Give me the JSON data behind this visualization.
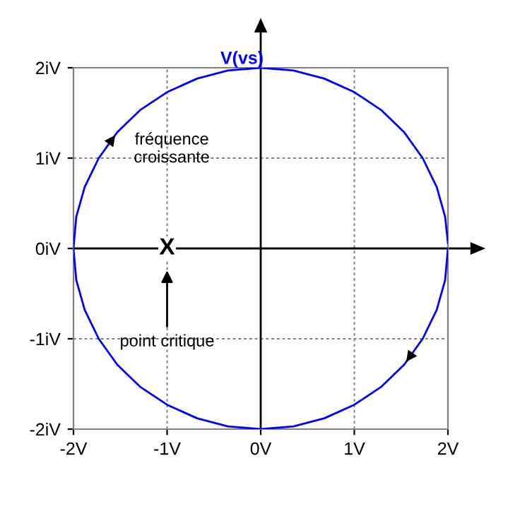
{
  "chart_data": {
    "type": "line",
    "title": "V(vs)",
    "series": [
      {
        "color": "#0000ff",
        "x": [
          2,
          1.97,
          1.88,
          1.73,
          1.53,
          1.29,
          1,
          0.68,
          0.35,
          0,
          -0.35,
          -0.68,
          -1,
          -1.29,
          -1.53,
          -1.73,
          -1.88,
          -1.97,
          -2,
          -1.97,
          -1.88,
          -1.73,
          -1.53,
          -1.29,
          -1,
          -0.68,
          -0.35,
          0,
          0.35,
          0.68,
          1,
          1.29,
          1.53,
          1.73,
          1.88,
          1.97,
          2
        ],
        "values": [
          0,
          -0.35,
          -0.68,
          -1,
          -1.29,
          -1.53,
          -1.73,
          -1.88,
          -1.97,
          -2,
          -1.97,
          -1.88,
          -1.73,
          -1.53,
          -1.29,
          -1,
          -0.68,
          -0.35,
          0,
          0.35,
          0.68,
          1,
          1.29,
          1.53,
          1.73,
          1.88,
          1.97,
          2,
          1.97,
          1.88,
          1.73,
          1.53,
          1.29,
          1,
          0.68,
          0.35,
          0.06
        ]
      }
    ],
    "xlim": [
      -2,
      2
    ],
    "ylim": [
      -2,
      2
    ],
    "xticks": [
      {
        "value": -2,
        "label": "-2V"
      },
      {
        "value": -1,
        "label": "-1V"
      },
      {
        "value": 0,
        "label": "0V"
      },
      {
        "value": 1,
        "label": "1V"
      },
      {
        "value": 2,
        "label": "2V"
      }
    ],
    "yticks": [
      {
        "value": -2,
        "label": "-2iV"
      },
      {
        "value": -1,
        "label": "-1iV"
      },
      {
        "value": 0,
        "label": "0iV"
      },
      {
        "value": 1,
        "label": "1iV"
      },
      {
        "value": 2,
        "label": "2iV"
      }
    ],
    "grid": true,
    "line_style": "solid",
    "marker": "none",
    "annotations": [
      "X",
      "point critique",
      "fréquence croissante"
    ]
  }
}
